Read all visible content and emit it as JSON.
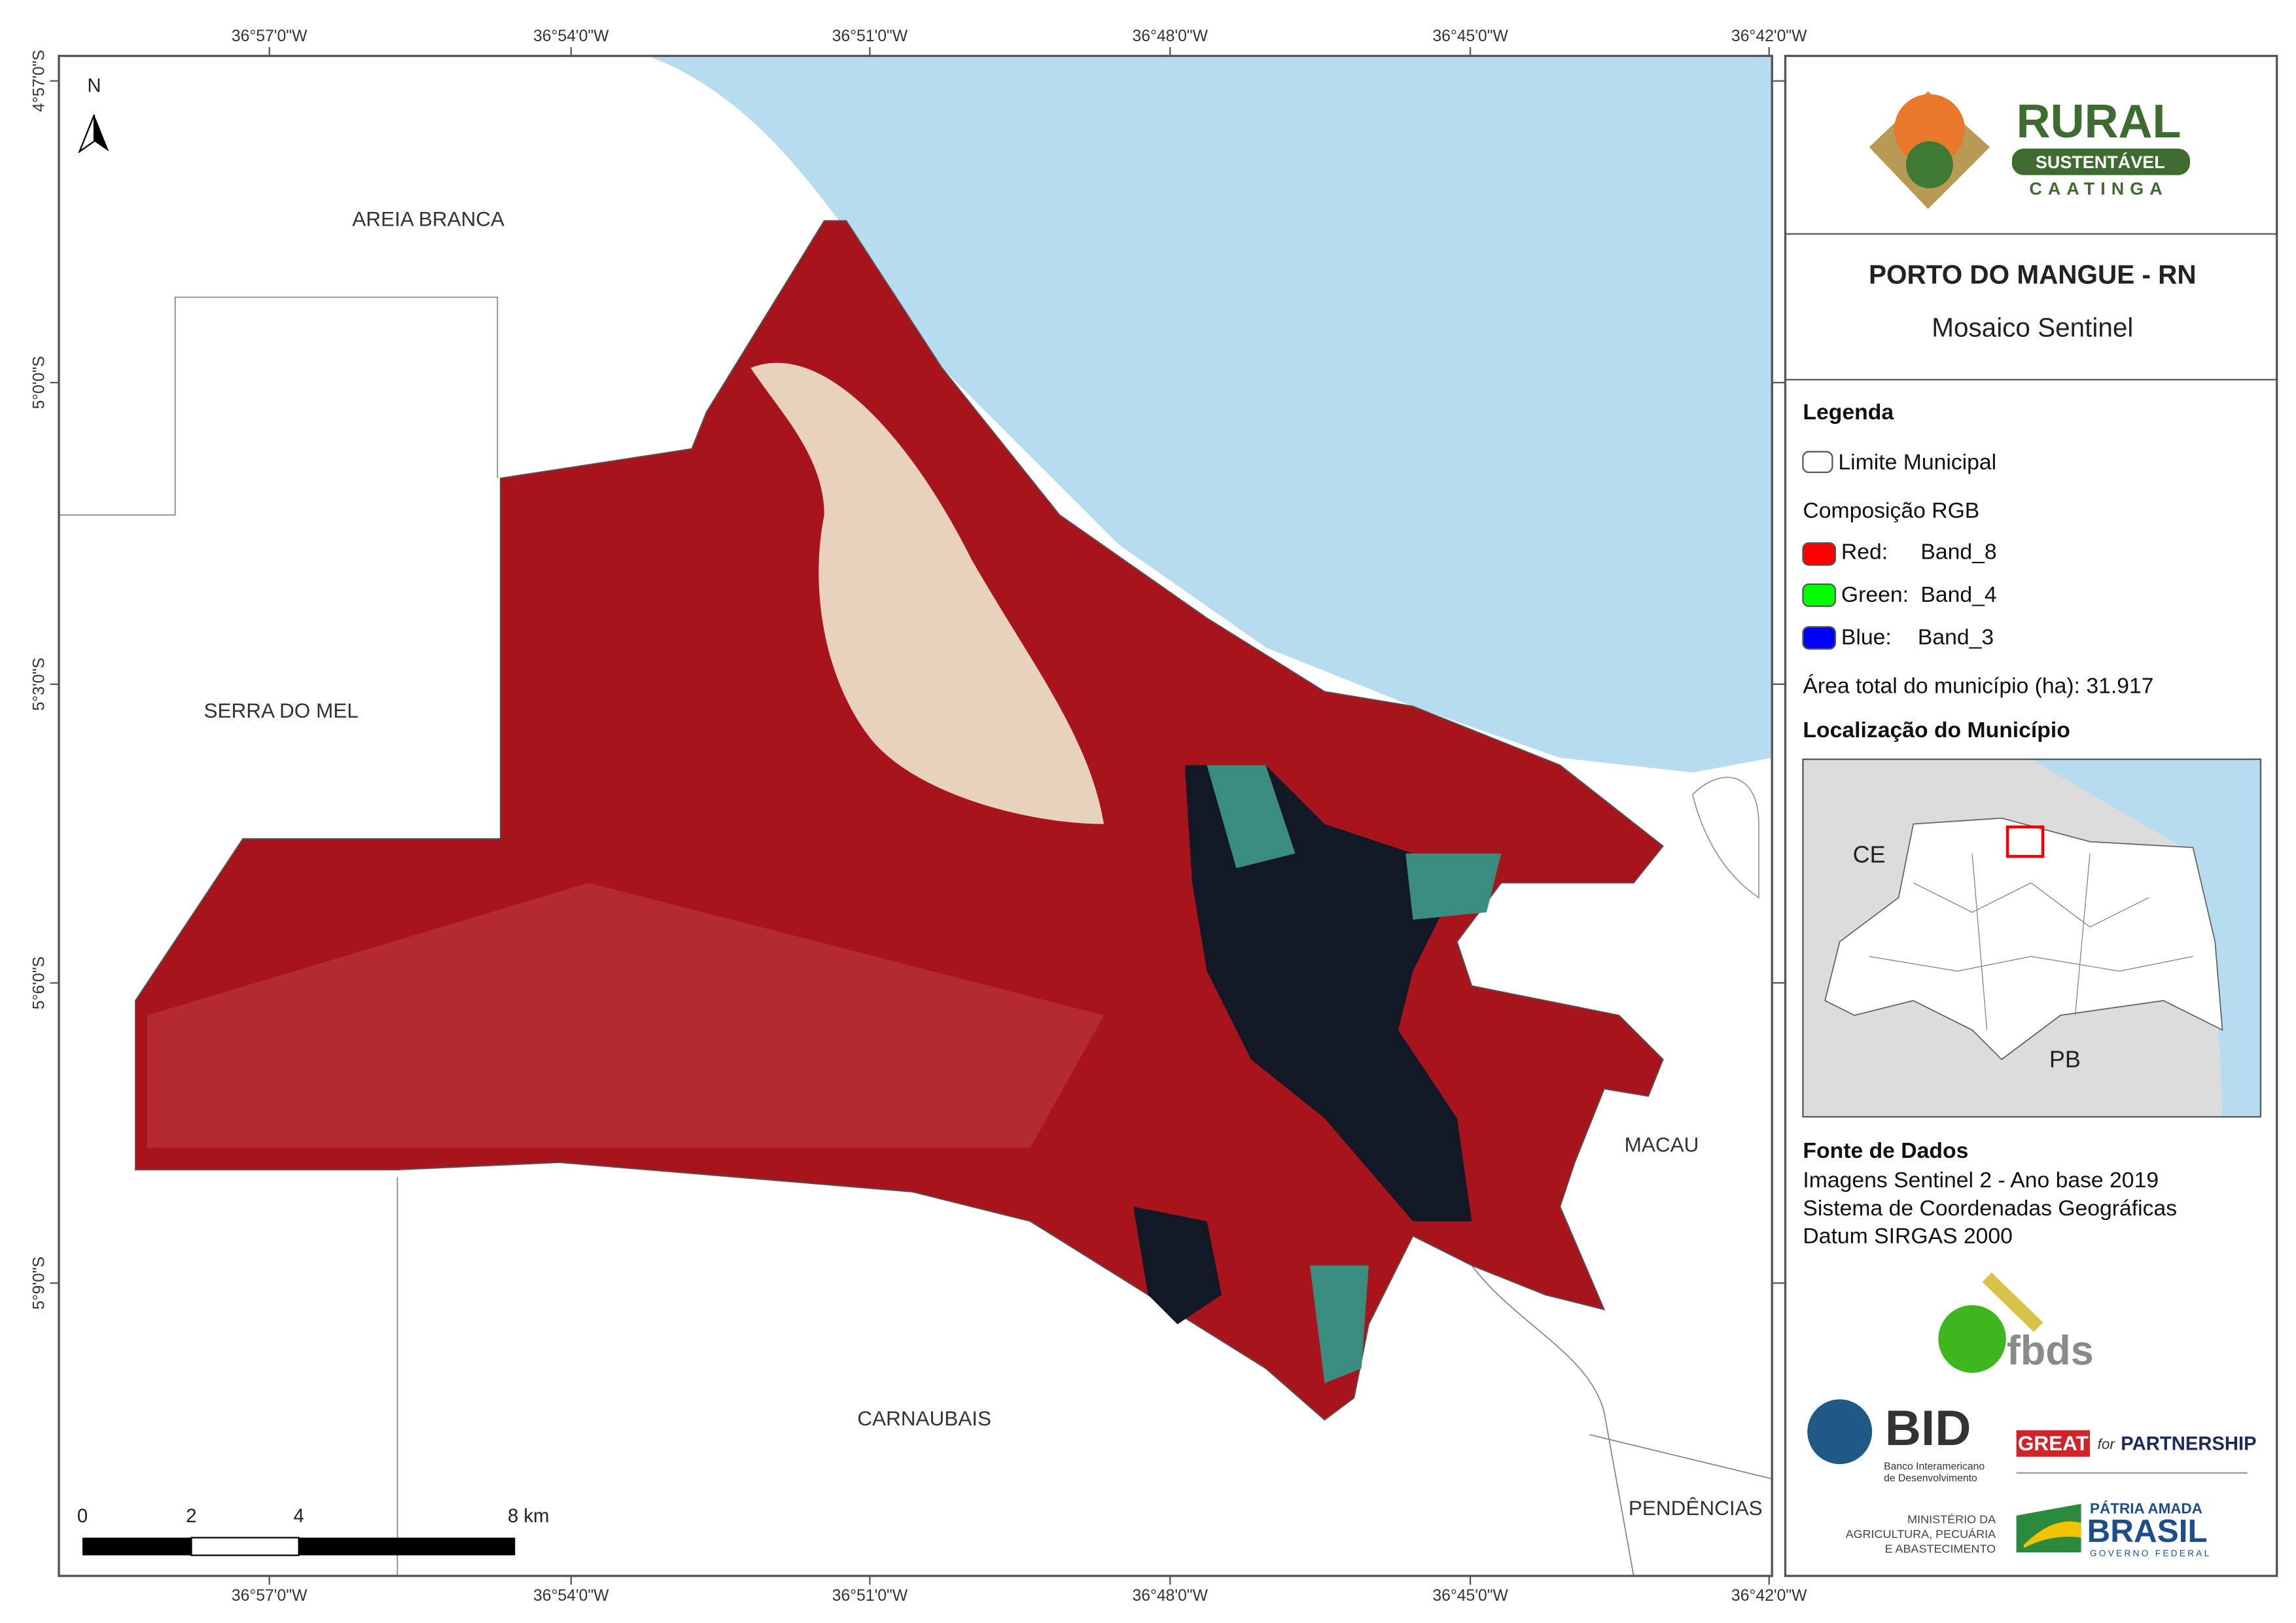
{
  "map": {
    "top_longitudes": [
      "36°57'0\"W",
      "36°54'0\"W",
      "36°51'0\"W",
      "36°48'0\"W",
      "36°45'0\"W",
      "36°42'0\"W"
    ],
    "bottom_longitudes": [
      "36°57'0\"W",
      "36°54'0\"W",
      "36°51'0\"W",
      "36°48'0\"W",
      "36°45'0\"W",
      "36°42'0\"W"
    ],
    "latitudes": [
      "4°57'0\"S",
      "5°0'0\"S",
      "5°3'0\"S",
      "5°6'0\"S",
      "5°9'0\"S"
    ],
    "places": [
      "AREIA BRANCA",
      "SERRA DO MEL",
      "CARNAUBAIS",
      "MACAU",
      "PENDÊNCIAS"
    ],
    "north": "N",
    "scale_labels": [
      "0",
      "2",
      "4",
      "8 km"
    ]
  },
  "logo": {
    "line1": "RURAL",
    "line2": "SUSTENTÁVEL",
    "line3": "CAATINGA"
  },
  "header": {
    "title": "PORTO DO MANGUE - RN",
    "subtitle": "Mosaico Sentinel"
  },
  "legend": {
    "title": "Legenda",
    "boundary": "Limite Municipal",
    "composition": "Composição RGB",
    "bands": [
      {
        "channel": "Red:",
        "band": "Band_8"
      },
      {
        "channel": "Green:",
        "band": "Band_4"
      },
      {
        "channel": "Blue:",
        "band": "Band_3"
      }
    ],
    "area": "Área total do município (ha): 31.917"
  },
  "inset": {
    "title": "Localização do Município",
    "labels": [
      "CE",
      "PB"
    ]
  },
  "sources": {
    "title": "Fonte de Dados",
    "lines": [
      "Imagens Sentinel 2 - Ano base 2019",
      "Sistema de Coordenadas Geográficas",
      "Datum SIRGAS 2000"
    ]
  },
  "partners": {
    "fbds": "fbds",
    "bid": "BID",
    "bid_name": [
      "Banco Interamericano",
      "de Desenvolvimento"
    ],
    "great": "GREAT",
    "for": "for",
    "partnership": "PARTNERSHIP",
    "ministry": [
      "MINISTÉRIO DA",
      "AGRICULTURA, PECUÁRIA",
      "E ABASTECIMENTO"
    ],
    "patria": "PÁTRIA AMADA",
    "brasil": "BRASIL",
    "governo": "GOVERNO FEDERAL"
  }
}
